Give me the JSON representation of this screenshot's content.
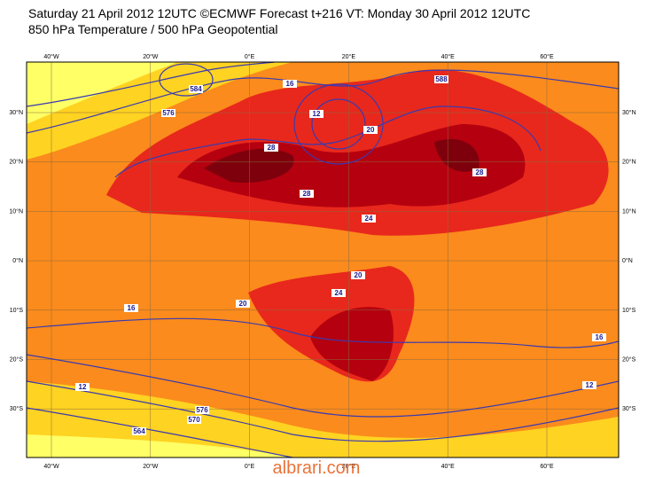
{
  "header": {
    "line1": "Saturday 21 April 2012 12UTC ©ECMWF Forecast t+216 VT: Monday 30 April 2012 12UTC",
    "line2": "850 hPa Temperature / 500 hPa Geopotential"
  },
  "map": {
    "lon_labels": [
      "40°W",
      "20°W",
      "0°E",
      "20°E",
      "40°E",
      "60°E"
    ],
    "lat_labels": [
      "30°N",
      "20°N",
      "10°N",
      "0°N",
      "10°S",
      "20°S",
      "30°S"
    ],
    "contour_labels": [
      "16",
      "12",
      "20",
      "28",
      "28",
      "28",
      "24",
      "20",
      "24",
      "20",
      "16",
      "12",
      "576",
      "570",
      "564",
      "584",
      "576",
      "588",
      "12",
      "16"
    ]
  },
  "watermark": "albrari.com"
}
